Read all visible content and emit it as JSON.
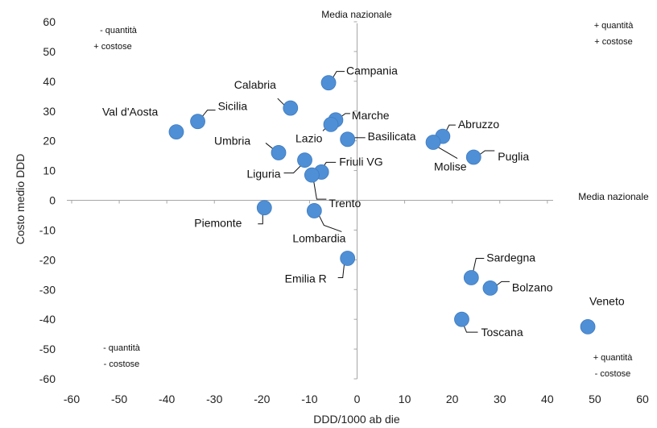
{
  "chart_data": {
    "type": "scatter",
    "xlabel": "DDD/1000 ab die",
    "ylabel": "Costo medio DDD",
    "xlim": [
      -60,
      60
    ],
    "ylim": [
      -60,
      60
    ],
    "x_ticks": [
      "-60",
      "-50",
      "-40",
      "-30",
      "-20",
      "-10",
      "0",
      "10",
      "20",
      "30",
      "40",
      "50",
      "60"
    ],
    "y_ticks": [
      "60",
      "50",
      "40",
      "30",
      "20",
      "10",
      "0",
      "-10",
      "-20",
      "-30",
      "-40",
      "-50",
      "-60"
    ],
    "grid": false,
    "series_color": "#4f8fd6",
    "reference_lines": {
      "vertical_label": "Media nazionale",
      "horizontal_label": "Media nazionale"
    },
    "quadrant_labels": {
      "top_left": [
        "- quantità",
        "+ costose"
      ],
      "top_right": [
        "+ quantità",
        "+ costose"
      ],
      "bottom_left": [
        "- quantità",
        "- costose"
      ],
      "bottom_right": [
        "+ quantità",
        "- costose"
      ]
    },
    "points": [
      {
        "label": "Val d'Aosta",
        "x": -38,
        "y": 23
      },
      {
        "label": "Sicilia",
        "x": -33.5,
        "y": 26.5
      },
      {
        "label": "Calabria",
        "x": -14,
        "y": 31
      },
      {
        "label": "Campania",
        "x": -6,
        "y": 39.5
      },
      {
        "label": "Marche",
        "x": -4.5,
        "y": 27
      },
      {
        "label": "Lazio",
        "x": -5.5,
        "y": 25.5
      },
      {
        "label": "Basilicata",
        "x": -2,
        "y": 20.5
      },
      {
        "label": "Umbria",
        "x": -16.5,
        "y": 16
      },
      {
        "label": "Liguria",
        "x": -11,
        "y": 13.5
      },
      {
        "label": "Friuli VG",
        "x": -7.5,
        "y": 9.5
      },
      {
        "label": "Trento",
        "x": -9.5,
        "y": 8.5
      },
      {
        "label": "Abruzzo",
        "x": 18,
        "y": 21.5
      },
      {
        "label": "Molise",
        "x": 16,
        "y": 19.5
      },
      {
        "label": "Puglia",
        "x": 24.5,
        "y": 14.5
      },
      {
        "label": "Piemonte",
        "x": -19.5,
        "y": -2.5
      },
      {
        "label": "Lombardia",
        "x": -9,
        "y": -3.5
      },
      {
        "label": "Emilia R",
        "x": -2,
        "y": -19.5
      },
      {
        "label": "Sardegna",
        "x": 24,
        "y": -26
      },
      {
        "label": "Bolzano",
        "x": 28,
        "y": -29.5
      },
      {
        "label": "Toscana",
        "x": 22,
        "y": -40
      },
      {
        "label": "Veneto",
        "x": 48.5,
        "y": -42.5
      }
    ]
  }
}
